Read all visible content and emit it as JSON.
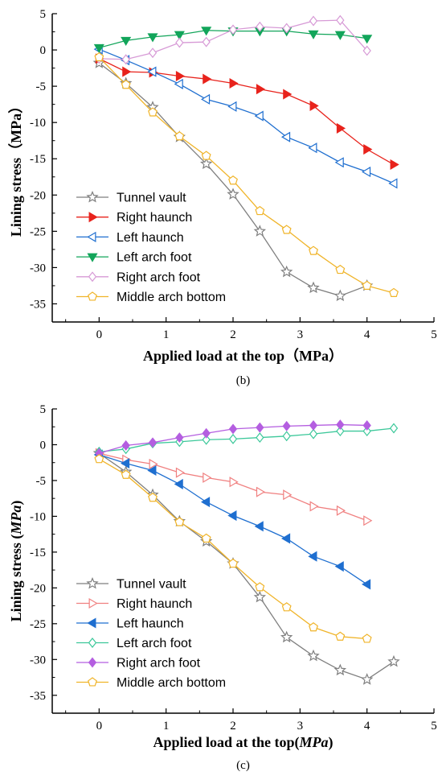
{
  "chart_data": [
    {
      "type": "line",
      "panel_label": "(b)",
      "title": "",
      "xlabel": "Applied load at the top（MPa）",
      "ylabel": "Lining stress（MPa）",
      "xlim": [
        -0.7,
        5
      ],
      "ylim": [
        -37.5,
        5
      ],
      "xticks": [
        "0",
        "1",
        "2",
        "3",
        "4",
        "5"
      ],
      "yticks": [
        "5",
        "0",
        "-5",
        "-10",
        "-15",
        "-20",
        "-25",
        "-30",
        "-35"
      ],
      "grid": false,
      "legend_position": "lower-left",
      "series": [
        {
          "name": "Tunnel vault",
          "color": "#7f7f7f",
          "marker": "star-open",
          "x": [
            0,
            0.4,
            0.8,
            1.2,
            1.6,
            2.0,
            2.4,
            2.8,
            3.2,
            3.6,
            4.0
          ],
          "y": [
            -1.8,
            -4.6,
            -7.9,
            -12.0,
            -15.7,
            -19.9,
            -25.0,
            -30.6,
            -32.8,
            -33.9,
            -32.5
          ]
        },
        {
          "name": "Right haunch",
          "color": "#e8231c",
          "marker": "triangle-right-filled",
          "x": [
            0,
            0.4,
            0.8,
            1.2,
            1.6,
            2.0,
            2.4,
            2.8,
            3.2,
            3.6,
            4.0,
            4.4
          ],
          "y": [
            -1.2,
            -3.0,
            -3.1,
            -3.6,
            -4.0,
            -4.6,
            -5.4,
            -6.1,
            -7.7,
            -10.8,
            -13.7,
            -15.8
          ]
        },
        {
          "name": "Left haunch",
          "color": "#1f6fd0",
          "marker": "triangle-left-open",
          "x": [
            0,
            0.4,
            0.8,
            1.2,
            1.6,
            2.0,
            2.4,
            2.8,
            3.2,
            3.6,
            4.0,
            4.4
          ],
          "y": [
            0.1,
            -1.4,
            -3.0,
            -4.7,
            -6.8,
            -7.8,
            -9.1,
            -12.0,
            -13.5,
            -15.5,
            -16.8,
            -18.4
          ]
        },
        {
          "name": "Left arch foot",
          "color": "#12a55a",
          "marker": "triangle-down-filled",
          "x": [
            0,
            0.4,
            0.8,
            1.2,
            1.6,
            2.0,
            2.4,
            2.8,
            3.2,
            3.6,
            4.0
          ],
          "y": [
            0.3,
            1.3,
            1.8,
            2.1,
            2.7,
            2.6,
            2.6,
            2.6,
            2.2,
            2.1,
            1.6
          ]
        },
        {
          "name": "Right arch foot",
          "color": "#d79ad6",
          "marker": "diamond-open",
          "x": [
            0,
            0.4,
            0.8,
            1.2,
            1.6,
            2.0,
            2.4,
            2.8,
            3.2,
            3.6,
            4.0
          ],
          "y": [
            -1.2,
            -1.3,
            -0.4,
            1.0,
            1.1,
            2.8,
            3.2,
            3.0,
            4.0,
            4.1,
            -0.1
          ]
        },
        {
          "name": "Middle arch bottom",
          "color": "#f0b429",
          "marker": "pentagon-open",
          "x": [
            0,
            0.4,
            0.8,
            1.2,
            1.6,
            2.0,
            2.4,
            2.8,
            3.2,
            3.6,
            4.0,
            4.4
          ],
          "y": [
            -1.0,
            -4.8,
            -8.6,
            -11.9,
            -14.6,
            -18.0,
            -22.2,
            -24.8,
            -27.7,
            -30.3,
            -32.5,
            -33.5
          ]
        }
      ]
    },
    {
      "type": "line",
      "panel_label": "(c)",
      "title": "",
      "xlabel_main": "Applied load at the top",
      "xlabel_unit": "MPa",
      "ylabel_main": "Lining stress",
      "ylabel_unit": "MPa",
      "xlim": [
        -0.7,
        5
      ],
      "ylim": [
        -37.5,
        5
      ],
      "xticks": [
        "0",
        "1",
        "2",
        "3",
        "4",
        "5"
      ],
      "yticks": [
        "5",
        "0",
        "-5",
        "-10",
        "-15",
        "-20",
        "-25",
        "-30",
        "-35"
      ],
      "grid": false,
      "legend_position": "lower-left",
      "series": [
        {
          "name": "Tunnel vault",
          "color": "#7f7f7f",
          "marker": "star-open",
          "x": [
            0,
            0.4,
            0.8,
            1.2,
            1.6,
            2.0,
            2.4,
            2.8,
            3.2,
            3.6,
            4.0,
            4.4
          ],
          "y": [
            -1.2,
            -3.8,
            -7.0,
            -10.7,
            -13.5,
            -16.6,
            -21.3,
            -26.9,
            -29.5,
            -31.5,
            -32.8,
            -30.3
          ]
        },
        {
          "name": "Right haunch",
          "color": "#f08080",
          "marker": "triangle-right-open",
          "x": [
            0,
            0.4,
            0.8,
            1.2,
            1.6,
            2.0,
            2.4,
            2.8,
            3.2,
            3.6,
            4.0
          ],
          "y": [
            -1.2,
            -2.1,
            -2.7,
            -3.9,
            -4.6,
            -5.2,
            -6.6,
            -7.0,
            -8.6,
            -9.2,
            -10.6
          ]
        },
        {
          "name": "Left haunch",
          "color": "#1f6fd0",
          "marker": "triangle-left-filled",
          "x": [
            0,
            0.4,
            0.8,
            1.2,
            1.6,
            2.0,
            2.4,
            2.8,
            3.2,
            3.6,
            4.0
          ],
          "y": [
            -1.4,
            -2.6,
            -3.6,
            -5.5,
            -8.0,
            -9.9,
            -11.4,
            -13.1,
            -15.6,
            -17.0,
            -19.5
          ]
        },
        {
          "name": "Left arch foot",
          "color": "#3cc89a",
          "marker": "diamond-open",
          "x": [
            0,
            0.4,
            0.8,
            1.2,
            1.6,
            2.0,
            2.4,
            2.8,
            3.2,
            3.6,
            4.0,
            4.4
          ],
          "y": [
            -1.0,
            -0.6,
            0.2,
            0.4,
            0.7,
            0.8,
            1.0,
            1.2,
            1.5,
            1.9,
            1.9,
            2.3
          ]
        },
        {
          "name": "Right arch foot",
          "color": "#b45ee0",
          "marker": "diamond-filled",
          "x": [
            0,
            0.4,
            0.8,
            1.2,
            1.6,
            2.0,
            2.4,
            2.8,
            3.2,
            3.6,
            4.0
          ],
          "y": [
            -1.2,
            -0.1,
            0.3,
            1.0,
            1.6,
            2.2,
            2.4,
            2.6,
            2.7,
            2.8,
            2.7
          ]
        },
        {
          "name": "Middle arch bottom",
          "color": "#f0b429",
          "marker": "pentagon-open",
          "x": [
            0,
            0.4,
            0.8,
            1.2,
            1.6,
            2.0,
            2.4,
            2.8,
            3.2,
            3.6,
            4.0
          ],
          "y": [
            -2.0,
            -4.2,
            -7.4,
            -10.8,
            -13.1,
            -16.6,
            -19.9,
            -22.7,
            -25.5,
            -26.8,
            -27.1
          ]
        }
      ]
    }
  ]
}
